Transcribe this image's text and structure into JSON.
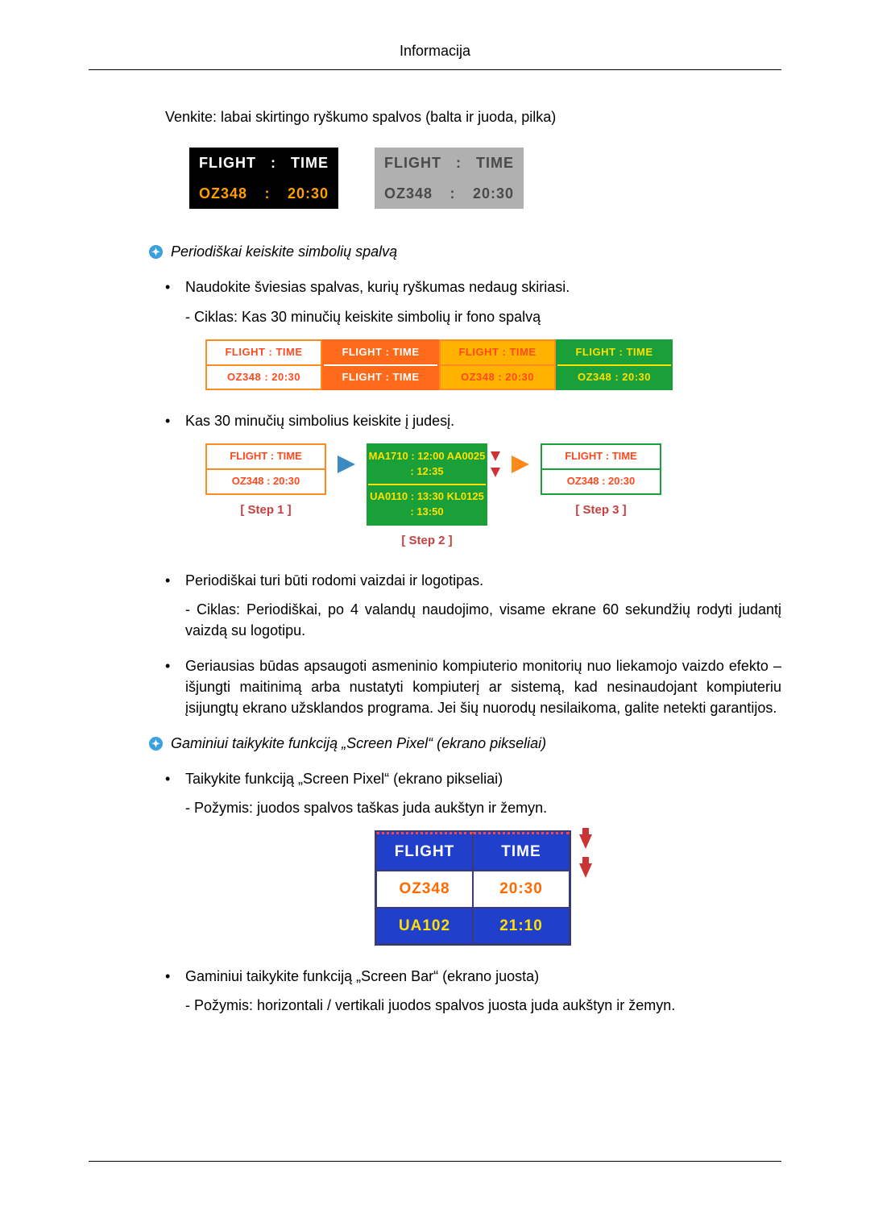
{
  "header": {
    "title": "Informacija"
  },
  "intro": "Venkite: labai skirtingo ryškumo spalvos (balta ir juoda, pilka)",
  "figA": {
    "row1": {
      "l": "FLIGHT",
      "sep": ":",
      "r": "TIME"
    },
    "row2": {
      "l": "OZ348",
      "sep": ":",
      "r": "20:30"
    },
    "dark_bg": "#000000",
    "dark_text": "#ffffff",
    "dark_accent": "#ffa000",
    "grey_bg": "#b0b0b0",
    "grey_text": "#4a4a4a"
  },
  "section1": {
    "heading": "Periodiškai keiskite simbolių spalvą",
    "bullet1": "Naudokite šviesias spalvas, kurių ryškumas nedaug skiriasi.",
    "sub1": "- Ciklas: Kas 30 minučių keiskite simbolių ir fono spalvą"
  },
  "figB": {
    "boxes": [
      {
        "bg": "#ffffff",
        "border": "#ff8a1f",
        "text": "#ff4a1f",
        "row1": "FLIGHT  :  TIME",
        "row2": "OZ348   :  20:30"
      },
      {
        "bg": "#ff6a1a",
        "border": "#ff6a1a",
        "text": "#ffffff",
        "row1": "FLIGHT  :  TIME",
        "row2": "FLIGHT  :  TIME"
      },
      {
        "bg": "#ffb300",
        "border": "#ff8a1f",
        "text": "#ff4a1f",
        "row1": "FLIGHT  :  TIME",
        "row2": "OZ348   :  20:30"
      },
      {
        "bg": "#1aa038",
        "border": "#1aa038",
        "text": "#ffe000",
        "row1": "FLIGHT  :  TIME",
        "row2": "OZ348   :  20:30"
      }
    ]
  },
  "section2": {
    "bullet": "Kas 30 minučių simbolius keiskite į judesį."
  },
  "figC": {
    "step1": {
      "label": "[  Step 1  ]",
      "bg": "#ffffff",
      "border": "#ff8a1f",
      "text": "#ff4a1f",
      "r1": "FLIGHT  :  TIME",
      "r2": "OZ348   :  20:30"
    },
    "step2": {
      "label": "[  Step 2  ]",
      "bg": "#1aa038",
      "border": "#1aa038",
      "text": "#ffe000",
      "r1": "MA1710 : 12:00  AA0025 : 12:35",
      "r2": "UA0110 : 13:30  KL0125 : 13:50"
    },
    "step3": {
      "label": "[  Step 3  ]",
      "bg": "#ffffff",
      "border": "#1aa038",
      "text": "#ff4a1f",
      "r1": "FLIGHT  :  TIME",
      "r2": "OZ348   :  20:30"
    },
    "arrow_blue": "#3a8ac4",
    "arrow_orange": "#ff8a1a"
  },
  "section3": {
    "b1": "Periodiškai turi būti rodomi vaizdai ir logotipas.",
    "b1sub": "- Ciklas: Periodiškai, po 4 valandų naudojimo, visame ekrane 60 sekundžių rodyti judantį vaizdą su logotipu.",
    "b2": "Geriausias būdas apsaugoti asmeninio kompiuterio monitorių nuo liekamojo vaizdo efekto – išjungti maitinimą arba nustatyti kompiuterį ar sistemą, kad nesinaudojant kompiuteriu įsijungtų ekrano užsklandos programa. Jei šių nuorodų nesilaikoma, galite netekti garantijos."
  },
  "section4": {
    "heading": "Gaminiui taikykite funkciją „Screen Pixel“ (ekrano pikseliai)",
    "b1": "Taikykite funkciją „Screen Pixel“ (ekrano pikseliai)",
    "b1sub": "- Požymis: juodos spalvos taškas juda aukštyn ir žemyn."
  },
  "figD": {
    "hdr": {
      "c1": "FLIGHT",
      "c2": "TIME"
    },
    "r1": {
      "c1": "OZ348",
      "c2": "20:30"
    },
    "r2": {
      "c1": "UA102",
      "c2": "21:10"
    }
  },
  "section5": {
    "b1": "Gaminiui taikykite funkciją „Screen Bar“ (ekrano juosta)",
    "b1sub": "- Požymis: horizontali / vertikali juodos spalvos juosta juda aukštyn ir žemyn."
  }
}
